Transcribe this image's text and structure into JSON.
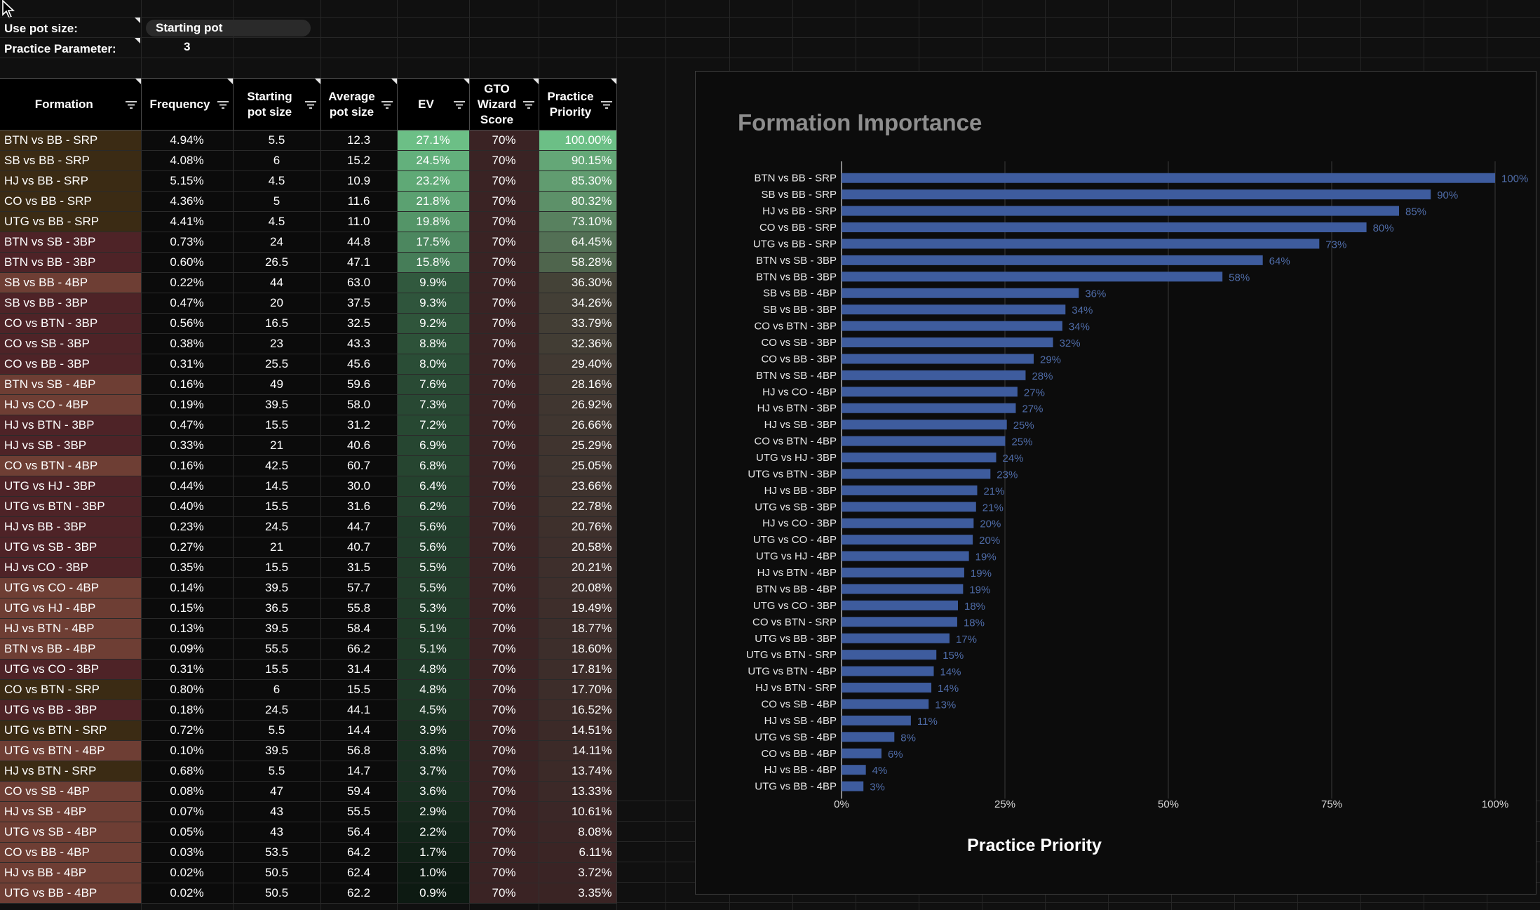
{
  "params": {
    "pot_label": "Use pot size:",
    "pot_value": "Starting pot",
    "practice_label": "Practice Parameter:",
    "practice_value": "3"
  },
  "table": {
    "headers": {
      "formation": "Formation",
      "frequency": "Frequency",
      "start1": "Starting",
      "start2": "pot size",
      "avg1": "Average",
      "avg2": "pot size",
      "ev": "EV",
      "gto1": "GTO",
      "gto2": "Wizard",
      "gto3": "Score",
      "prio1": "Practice",
      "prio2": "Priority"
    },
    "rows": [
      {
        "formation": "BTN vs BB - SRP",
        "frequency": "4.94%",
        "start": "5.5",
        "avg": "12.3",
        "ev": "27.1%",
        "gto": "70%",
        "priority": "100.00%"
      },
      {
        "formation": "SB vs BB - SRP",
        "frequency": "4.08%",
        "start": "6",
        "avg": "15.2",
        "ev": "24.5%",
        "gto": "70%",
        "priority": "90.15%"
      },
      {
        "formation": "HJ vs BB - SRP",
        "frequency": "5.15%",
        "start": "4.5",
        "avg": "10.9",
        "ev": "23.2%",
        "gto": "70%",
        "priority": "85.30%"
      },
      {
        "formation": "CO vs BB - SRP",
        "frequency": "4.36%",
        "start": "5",
        "avg": "11.6",
        "ev": "21.8%",
        "gto": "70%",
        "priority": "80.32%"
      },
      {
        "formation": "UTG vs BB - SRP",
        "frequency": "4.41%",
        "start": "4.5",
        "avg": "11.0",
        "ev": "19.8%",
        "gto": "70%",
        "priority": "73.10%"
      },
      {
        "formation": "BTN vs SB - 3BP",
        "frequency": "0.73%",
        "start": "24",
        "avg": "44.8",
        "ev": "17.5%",
        "gto": "70%",
        "priority": "64.45%"
      },
      {
        "formation": "BTN vs BB - 3BP",
        "frequency": "0.60%",
        "start": "26.5",
        "avg": "47.1",
        "ev": "15.8%",
        "gto": "70%",
        "priority": "58.28%"
      },
      {
        "formation": "SB vs BB - 4BP",
        "frequency": "0.22%",
        "start": "44",
        "avg": "63.0",
        "ev": "9.9%",
        "gto": "70%",
        "priority": "36.30%"
      },
      {
        "formation": "SB vs BB - 3BP",
        "frequency": "0.47%",
        "start": "20",
        "avg": "37.5",
        "ev": "9.3%",
        "gto": "70%",
        "priority": "34.26%"
      },
      {
        "formation": "CO vs BTN - 3BP",
        "frequency": "0.56%",
        "start": "16.5",
        "avg": "32.5",
        "ev": "9.2%",
        "gto": "70%",
        "priority": "33.79%"
      },
      {
        "formation": "CO vs SB - 3BP",
        "frequency": "0.38%",
        "start": "23",
        "avg": "43.3",
        "ev": "8.8%",
        "gto": "70%",
        "priority": "32.36%"
      },
      {
        "formation": "CO vs BB - 3BP",
        "frequency": "0.31%",
        "start": "25.5",
        "avg": "45.6",
        "ev": "8.0%",
        "gto": "70%",
        "priority": "29.40%"
      },
      {
        "formation": "BTN vs SB - 4BP",
        "frequency": "0.16%",
        "start": "49",
        "avg": "59.6",
        "ev": "7.6%",
        "gto": "70%",
        "priority": "28.16%"
      },
      {
        "formation": "HJ vs CO - 4BP",
        "frequency": "0.19%",
        "start": "39.5",
        "avg": "58.0",
        "ev": "7.3%",
        "gto": "70%",
        "priority": "26.92%"
      },
      {
        "formation": "HJ vs BTN - 3BP",
        "frequency": "0.47%",
        "start": "15.5",
        "avg": "31.2",
        "ev": "7.2%",
        "gto": "70%",
        "priority": "26.66%"
      },
      {
        "formation": "HJ vs SB - 3BP",
        "frequency": "0.33%",
        "start": "21",
        "avg": "40.6",
        "ev": "6.9%",
        "gto": "70%",
        "priority": "25.29%"
      },
      {
        "formation": "CO vs BTN - 4BP",
        "frequency": "0.16%",
        "start": "42.5",
        "avg": "60.7",
        "ev": "6.8%",
        "gto": "70%",
        "priority": "25.05%"
      },
      {
        "formation": "UTG vs HJ - 3BP",
        "frequency": "0.44%",
        "start": "14.5",
        "avg": "30.0",
        "ev": "6.4%",
        "gto": "70%",
        "priority": "23.66%"
      },
      {
        "formation": "UTG vs BTN - 3BP",
        "frequency": "0.40%",
        "start": "15.5",
        "avg": "31.6",
        "ev": "6.2%",
        "gto": "70%",
        "priority": "22.78%"
      },
      {
        "formation": "HJ vs BB - 3BP",
        "frequency": "0.23%",
        "start": "24.5",
        "avg": "44.7",
        "ev": "5.6%",
        "gto": "70%",
        "priority": "20.76%"
      },
      {
        "formation": "UTG vs SB - 3BP",
        "frequency": "0.27%",
        "start": "21",
        "avg": "40.7",
        "ev": "5.6%",
        "gto": "70%",
        "priority": "20.58%"
      },
      {
        "formation": "HJ vs CO - 3BP",
        "frequency": "0.35%",
        "start": "15.5",
        "avg": "31.5",
        "ev": "5.5%",
        "gto": "70%",
        "priority": "20.21%"
      },
      {
        "formation": "UTG vs CO - 4BP",
        "frequency": "0.14%",
        "start": "39.5",
        "avg": "57.7",
        "ev": "5.5%",
        "gto": "70%",
        "priority": "20.08%"
      },
      {
        "formation": "UTG vs HJ - 4BP",
        "frequency": "0.15%",
        "start": "36.5",
        "avg": "55.8",
        "ev": "5.3%",
        "gto": "70%",
        "priority": "19.49%"
      },
      {
        "formation": "HJ vs BTN - 4BP",
        "frequency": "0.13%",
        "start": "39.5",
        "avg": "58.4",
        "ev": "5.1%",
        "gto": "70%",
        "priority": "18.77%"
      },
      {
        "formation": "BTN vs BB - 4BP",
        "frequency": "0.09%",
        "start": "55.5",
        "avg": "66.2",
        "ev": "5.1%",
        "gto": "70%",
        "priority": "18.60%"
      },
      {
        "formation": "UTG vs CO - 3BP",
        "frequency": "0.31%",
        "start": "15.5",
        "avg": "31.4",
        "ev": "4.8%",
        "gto": "70%",
        "priority": "17.81%"
      },
      {
        "formation": "CO vs BTN - SRP",
        "frequency": "0.80%",
        "start": "6",
        "avg": "15.5",
        "ev": "4.8%",
        "gto": "70%",
        "priority": "17.70%"
      },
      {
        "formation": "UTG vs BB - 3BP",
        "frequency": "0.18%",
        "start": "24.5",
        "avg": "44.1",
        "ev": "4.5%",
        "gto": "70%",
        "priority": "16.52%"
      },
      {
        "formation": "UTG vs BTN - SRP",
        "frequency": "0.72%",
        "start": "5.5",
        "avg": "14.4",
        "ev": "3.9%",
        "gto": "70%",
        "priority": "14.51%"
      },
      {
        "formation": "UTG vs BTN - 4BP",
        "frequency": "0.10%",
        "start": "39.5",
        "avg": "56.8",
        "ev": "3.8%",
        "gto": "70%",
        "priority": "14.11%"
      },
      {
        "formation": "HJ vs BTN - SRP",
        "frequency": "0.68%",
        "start": "5.5",
        "avg": "14.7",
        "ev": "3.7%",
        "gto": "70%",
        "priority": "13.74%"
      },
      {
        "formation": "CO vs SB - 4BP",
        "frequency": "0.08%",
        "start": "47",
        "avg": "59.4",
        "ev": "3.6%",
        "gto": "70%",
        "priority": "13.33%"
      },
      {
        "formation": "HJ vs SB - 4BP",
        "frequency": "0.07%",
        "start": "43",
        "avg": "55.5",
        "ev": "2.9%",
        "gto": "70%",
        "priority": "10.61%"
      },
      {
        "formation": "UTG vs SB - 4BP",
        "frequency": "0.05%",
        "start": "43",
        "avg": "56.4",
        "ev": "2.2%",
        "gto": "70%",
        "priority": "8.08%"
      },
      {
        "formation": "CO vs BB - 4BP",
        "frequency": "0.03%",
        "start": "53.5",
        "avg": "64.2",
        "ev": "1.7%",
        "gto": "70%",
        "priority": "6.11%"
      },
      {
        "formation": "HJ vs BB - 4BP",
        "frequency": "0.02%",
        "start": "50.5",
        "avg": "62.4",
        "ev": "1.0%",
        "gto": "70%",
        "priority": "3.72%"
      },
      {
        "formation": "UTG vs BB - 4BP",
        "frequency": "0.02%",
        "start": "50.5",
        "avg": "62.2",
        "ev": "0.9%",
        "gto": "70%",
        "priority": "3.35%"
      }
    ]
  },
  "colors": {
    "srp": "#3b2b14",
    "bp3": "#4e2327",
    "bp4": "#6e3e34",
    "gto": "#3a2324",
    "bar": "#3e5c9e",
    "bar_label": "#4f6ca8",
    "ev_high": "#6cbf86",
    "ev_low": "#0d1a12"
  },
  "chart_data": {
    "type": "bar",
    "orientation": "horizontal",
    "title": "Formation Importance",
    "xlabel": "Practice Priority",
    "ylabel": "",
    "xlim": [
      0,
      100
    ],
    "xticks": [
      "0%",
      "25%",
      "50%",
      "75%",
      "100%"
    ],
    "grid": true,
    "categories": [
      "BTN vs BB - SRP",
      "SB vs BB - SRP",
      "HJ vs BB - SRP",
      "CO vs BB - SRP",
      "UTG vs BB - SRP",
      "BTN vs SB - 3BP",
      "BTN vs BB - 3BP",
      "SB vs BB - 4BP",
      "SB vs BB - 3BP",
      "CO vs BTN - 3BP",
      "CO vs SB - 3BP",
      "CO vs BB - 3BP",
      "BTN vs SB - 4BP",
      "HJ vs CO - 4BP",
      "HJ vs BTN - 3BP",
      "HJ vs SB - 3BP",
      "CO vs BTN - 4BP",
      "UTG vs HJ - 3BP",
      "UTG vs BTN - 3BP",
      "HJ vs BB - 3BP",
      "UTG vs SB - 3BP",
      "HJ vs CO - 3BP",
      "UTG vs CO - 4BP",
      "UTG vs HJ - 4BP",
      "HJ vs BTN - 4BP",
      "BTN vs BB - 4BP",
      "UTG vs CO - 3BP",
      "CO vs BTN - SRP",
      "UTG vs BB - 3BP",
      "UTG vs BTN - SRP",
      "UTG vs BTN - 4BP",
      "HJ vs BTN - SRP",
      "CO vs SB - 4BP",
      "HJ vs SB - 4BP",
      "UTG vs SB - 4BP",
      "CO vs BB - 4BP",
      "HJ vs BB - 4BP",
      "UTG vs BB - 4BP"
    ],
    "values": [
      100.0,
      90.15,
      85.3,
      80.32,
      73.1,
      64.45,
      58.28,
      36.3,
      34.26,
      33.79,
      32.36,
      29.4,
      28.16,
      26.92,
      26.66,
      25.29,
      25.05,
      23.66,
      22.78,
      20.76,
      20.58,
      20.21,
      20.08,
      19.49,
      18.77,
      18.6,
      17.81,
      17.7,
      16.52,
      14.51,
      14.11,
      13.74,
      13.33,
      10.61,
      8.08,
      6.11,
      3.72,
      3.35
    ],
    "data_labels": [
      "100%",
      "90%",
      "85%",
      "80%",
      "73%",
      "64%",
      "58%",
      "36%",
      "34%",
      "34%",
      "32%",
      "29%",
      "28%",
      "27%",
      "27%",
      "25%",
      "25%",
      "24%",
      "23%",
      "21%",
      "21%",
      "20%",
      "20%",
      "19%",
      "19%",
      "19%",
      "18%",
      "18%",
      "17%",
      "15%",
      "14%",
      "14%",
      "13%",
      "11%",
      "8%",
      "6%",
      "4%",
      "3%"
    ]
  }
}
